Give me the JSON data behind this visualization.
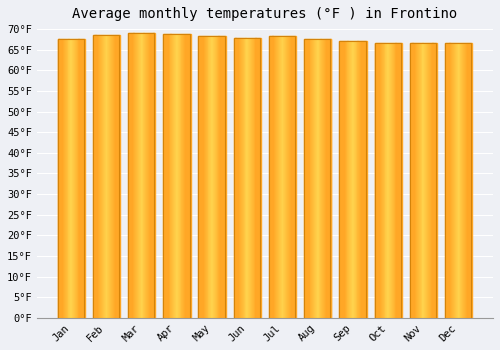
{
  "title": "Average monthly temperatures (°F ) in Frontino",
  "months": [
    "Jan",
    "Feb",
    "Mar",
    "Apr",
    "May",
    "Jun",
    "Jul",
    "Aug",
    "Sep",
    "Oct",
    "Nov",
    "Dec"
  ],
  "values": [
    67.5,
    68.5,
    69.0,
    68.7,
    68.2,
    67.8,
    68.2,
    67.5,
    67.1,
    66.7,
    66.7,
    66.7
  ],
  "bar_color": "#FFA726",
  "bar_edge_color": "#D4830A",
  "bar_highlight": "#FFD54F",
  "ylim": [
    0,
    70
  ],
  "yticks": [
    0,
    5,
    10,
    15,
    20,
    25,
    30,
    35,
    40,
    45,
    50,
    55,
    60,
    65,
    70
  ],
  "background_color": "#eef0f5",
  "plot_bg_color": "#eef0f5",
  "grid_color": "#ffffff",
  "title_fontsize": 10,
  "tick_fontsize": 7.5,
  "bar_width": 0.75
}
